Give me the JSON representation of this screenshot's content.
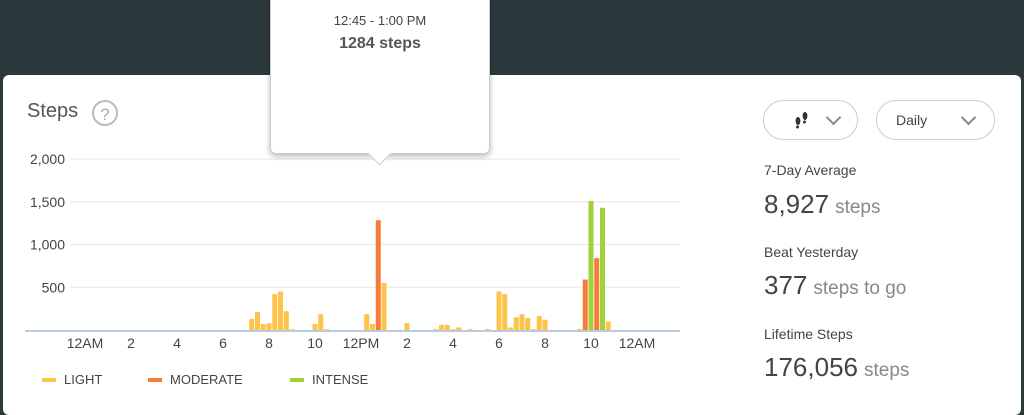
{
  "header": {
    "title": "Steps",
    "help_icon": "?"
  },
  "controls": {
    "activity_icon": "footprints-icon",
    "period": "Daily"
  },
  "tooltip": {
    "time": "12:45 - 1:00 PM",
    "steps": "1284 steps"
  },
  "legend": [
    {
      "label": "LIGHT",
      "color": "#fcc44a"
    },
    {
      "label": "MODERATE",
      "color": "#f57c3a"
    },
    {
      "label": "INTENSE",
      "color": "#a3d13a"
    }
  ],
  "stats": [
    {
      "label": "7-Day Average",
      "value": "8,927",
      "unit": "steps"
    },
    {
      "label": "Beat Yesterday",
      "value": "377",
      "unit": "steps to go"
    },
    {
      "label": "Lifetime Steps",
      "value": "176,056",
      "unit": "steps"
    }
  ],
  "chart_data": {
    "type": "bar",
    "interval": "15 min",
    "ylim": [
      0,
      2000
    ],
    "yticks": [
      {
        "v": 500,
        "label": "500"
      },
      {
        "v": 1000,
        "label": "1,000"
      },
      {
        "v": 1500,
        "label": "1,500"
      },
      {
        "v": 2000,
        "label": "2,000"
      }
    ],
    "xticks": [
      {
        "h": 0,
        "label": "12AM"
      },
      {
        "h": 2,
        "label": "2"
      },
      {
        "h": 4,
        "label": "4"
      },
      {
        "h": 6,
        "label": "6"
      },
      {
        "h": 8,
        "label": "8"
      },
      {
        "h": 10,
        "label": "10"
      },
      {
        "h": 12,
        "label": "12PM"
      },
      {
        "h": 14,
        "label": "2"
      },
      {
        "h": 16,
        "label": "4"
      },
      {
        "h": 18,
        "label": "6"
      },
      {
        "h": 20,
        "label": "8"
      },
      {
        "h": 22,
        "label": "10"
      },
      {
        "h": 24,
        "label": "12AM"
      }
    ],
    "colors": {
      "light": "#fcc44a",
      "moderate": "#f57c3a",
      "intense": "#a3d13a"
    },
    "bars": [
      {
        "time": "07:15",
        "type": "light",
        "steps": 130
      },
      {
        "time": "07:30",
        "type": "light",
        "steps": 210
      },
      {
        "time": "07:45",
        "type": "light",
        "steps": 70
      },
      {
        "time": "08:00",
        "type": "light",
        "steps": 80
      },
      {
        "time": "08:15",
        "type": "light",
        "steps": 420
      },
      {
        "time": "08:30",
        "type": "light",
        "steps": 450
      },
      {
        "time": "08:45",
        "type": "light",
        "steps": 220
      },
      {
        "time": "09:00",
        "type": "light",
        "steps": 10
      },
      {
        "time": "10:00",
        "type": "light",
        "steps": 70
      },
      {
        "time": "10:15",
        "type": "light",
        "steps": 185
      },
      {
        "time": "10:30",
        "type": "light",
        "steps": 10
      },
      {
        "time": "12:15",
        "type": "light",
        "steps": 185
      },
      {
        "time": "12:30",
        "type": "light",
        "steps": 70
      },
      {
        "time": "12:45",
        "type": "moderate",
        "steps": 1284
      },
      {
        "time": "13:00",
        "type": "light",
        "steps": 550
      },
      {
        "time": "14:00",
        "type": "light",
        "steps": 80
      },
      {
        "time": "15:15",
        "type": "light",
        "steps": 10
      },
      {
        "time": "15:30",
        "type": "light",
        "steps": 60
      },
      {
        "time": "15:45",
        "type": "light",
        "steps": 60
      },
      {
        "time": "16:00",
        "type": "light",
        "steps": 10
      },
      {
        "time": "16:15",
        "type": "light",
        "steps": 30
      },
      {
        "time": "16:45",
        "type": "light",
        "steps": 10
      },
      {
        "time": "17:30",
        "type": "light",
        "steps": 10
      },
      {
        "time": "18:00",
        "type": "light",
        "steps": 450
      },
      {
        "time": "18:15",
        "type": "light",
        "steps": 420
      },
      {
        "time": "18:30",
        "type": "light",
        "steps": 30
      },
      {
        "time": "18:45",
        "type": "light",
        "steps": 150
      },
      {
        "time": "19:00",
        "type": "light",
        "steps": 185
      },
      {
        "time": "19:15",
        "type": "light",
        "steps": 140
      },
      {
        "time": "19:30",
        "type": "light",
        "steps": 10
      },
      {
        "time": "19:45",
        "type": "light",
        "steps": 165
      },
      {
        "time": "20:00",
        "type": "light",
        "steps": 120
      },
      {
        "time": "21:30",
        "type": "light",
        "steps": 10
      },
      {
        "time": "21:45",
        "type": "moderate",
        "steps": 590
      },
      {
        "time": "22:00",
        "type": "intense",
        "steps": 1510
      },
      {
        "time": "22:15",
        "type": "moderate",
        "steps": 840
      },
      {
        "time": "22:30",
        "type": "intense",
        "steps": 1430
      },
      {
        "time": "22:45",
        "type": "light",
        "steps": 100
      }
    ]
  }
}
